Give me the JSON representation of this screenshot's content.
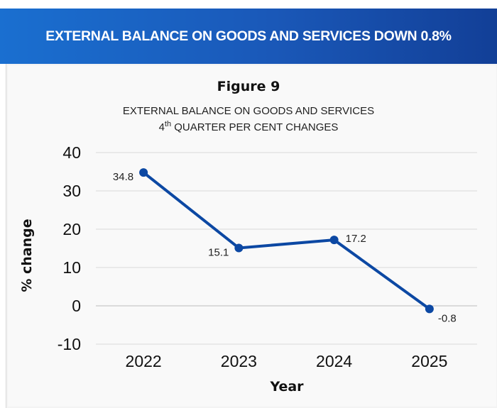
{
  "banner": {
    "title": "EXTERNAL BALANCE ON GOODS AND SERVICES DOWN 0.8%"
  },
  "figure": {
    "label": "Figure 9",
    "title_line1": "EXTERNAL BALANCE ON GOODS AND SERVICES",
    "title_line2_prefix": "4",
    "title_line2_sup": "th",
    "title_line2_rest": " QUARTER PER CENT CHANGES"
  },
  "colors": {
    "banner_start": "#1a6fd0",
    "banner_end": "#123f97",
    "series": "#0c48a3"
  },
  "chart_data": {
    "type": "line",
    "title": "EXTERNAL BALANCE ON GOODS AND SERVICES 4th QUARTER PER CENT CHANGES",
    "xlabel": "Year",
    "ylabel": "% change",
    "categories": [
      "2022",
      "2023",
      "2024",
      "2025"
    ],
    "values": [
      34.8,
      15.1,
      17.2,
      -0.8
    ],
    "data_labels": [
      "34.8",
      "15.1",
      "17.2",
      "-0.8"
    ],
    "ylim": [
      -10,
      40
    ],
    "yticks": [
      -10,
      0,
      10,
      20,
      30,
      40
    ],
    "grid": true,
    "legend": "none"
  }
}
